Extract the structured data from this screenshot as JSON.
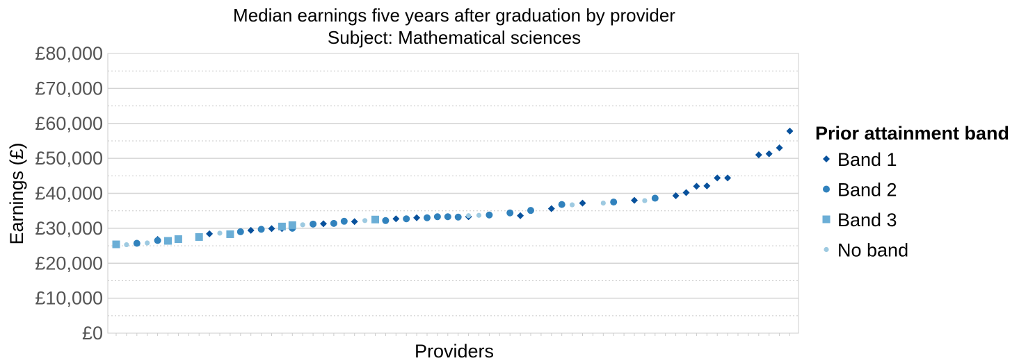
{
  "chart_data": {
    "type": "scatter",
    "title": "Median earnings five years after graduation by provider",
    "subtitle": "Subject: Mathematical sciences",
    "xlabel": "Providers",
    "ylabel": "Earnings (£)",
    "ylim": [
      0,
      80000
    ],
    "yticks": [
      0,
      10000,
      20000,
      30000,
      40000,
      50000,
      60000,
      70000,
      80000
    ],
    "ytick_labels": [
      "£0",
      "£10,000",
      "£20,000",
      "£30,000",
      "£40,000",
      "£50,000",
      "£60,000",
      "£70,000",
      "£80,000"
    ],
    "x_count": 66,
    "grid": true,
    "legend_position": "right",
    "legend_title": "Prior attainment band",
    "colors": {
      "band1": "#08519c",
      "band2": "#3182bd",
      "band3": "#6baed6",
      "noband": "#9ecae1",
      "grid_major": "#d4d4d4",
      "grid_minor": "#c8c8c8",
      "axis": "#cccccc"
    },
    "series": [
      {
        "name": "Band 1",
        "key": "band1",
        "marker": "diamond",
        "points": [
          [
            4,
            26800
          ],
          [
            9,
            28400
          ],
          [
            13,
            29400
          ],
          [
            15,
            29900
          ],
          [
            16,
            29900
          ],
          [
            20,
            31300
          ],
          [
            23,
            31900
          ],
          [
            27,
            32700
          ],
          [
            29,
            33000
          ],
          [
            34,
            33300
          ],
          [
            39,
            33600
          ],
          [
            42,
            35600
          ],
          [
            45,
            37200
          ],
          [
            50,
            38000
          ],
          [
            54,
            39300
          ],
          [
            55,
            40200
          ],
          [
            56,
            42000
          ],
          [
            57,
            42100
          ],
          [
            58,
            44400
          ],
          [
            59,
            44400
          ],
          [
            62,
            51000
          ],
          [
            63,
            51300
          ],
          [
            64,
            53000
          ],
          [
            65,
            57800
          ]
        ]
      },
      {
        "name": "Band 2",
        "key": "band2",
        "marker": "circle",
        "points": [
          [
            2,
            25700
          ],
          [
            4,
            26500
          ],
          [
            12,
            29000
          ],
          [
            14,
            29700
          ],
          [
            17,
            30000
          ],
          [
            19,
            31200
          ],
          [
            21,
            31400
          ],
          [
            22,
            32000
          ],
          [
            26,
            32200
          ],
          [
            28,
            32700
          ],
          [
            30,
            33000
          ],
          [
            31,
            33300
          ],
          [
            32,
            33300
          ],
          [
            33,
            33200
          ],
          [
            36,
            33800
          ],
          [
            38,
            34400
          ],
          [
            40,
            35100
          ],
          [
            43,
            36800
          ],
          [
            48,
            37500
          ],
          [
            52,
            38600
          ]
        ]
      },
      {
        "name": "Band 3",
        "key": "band3",
        "marker": "square",
        "points": [
          [
            0,
            25400
          ],
          [
            5,
            26400
          ],
          [
            6,
            26900
          ],
          [
            8,
            27500
          ],
          [
            11,
            28300
          ],
          [
            16,
            30500
          ],
          [
            17,
            30900
          ],
          [
            25,
            32500
          ]
        ]
      },
      {
        "name": "No band",
        "key": "noband",
        "marker": "dot",
        "points": [
          [
            1,
            25300
          ],
          [
            3,
            25800
          ],
          [
            10,
            28600
          ],
          [
            18,
            31000
          ],
          [
            24,
            32200
          ],
          [
            34,
            33600
          ],
          [
            35,
            33700
          ],
          [
            44,
            36700
          ],
          [
            47,
            37200
          ],
          [
            51,
            37900
          ]
        ]
      }
    ]
  }
}
